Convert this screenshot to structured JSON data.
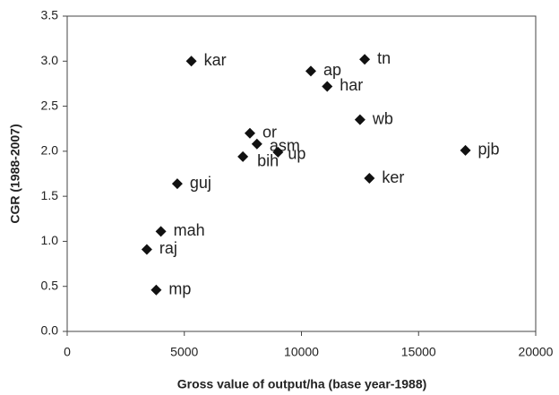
{
  "chart_data": {
    "type": "scatter",
    "xlabel": "Gross value of output/ha (base year-1988)",
    "ylabel": "CGR (1988-2007)",
    "point_labels": [
      "kar",
      "tn",
      "ap",
      "har",
      "wb",
      "or",
      "asm",
      "up",
      "bih",
      "pjb",
      "ker",
      "guj",
      "mah",
      "raj",
      "mp"
    ],
    "x": [
      5300,
      12700,
      10400,
      11100,
      12500,
      7800,
      8100,
      9000,
      7500,
      17000,
      12900,
      4700,
      4000,
      3400,
      3800
    ],
    "values": [
      3.0,
      3.02,
      2.89,
      2.72,
      2.35,
      2.2,
      2.08,
      1.99,
      1.94,
      2.01,
      1.7,
      1.64,
      1.11,
      0.91,
      0.46
    ],
    "color": "#111111",
    "xlim": [
      0,
      20000
    ],
    "xticks": [
      0,
      5000,
      10000,
      15000,
      20000
    ],
    "ylim": [
      0,
      3.5
    ],
    "yticks": [
      {
        "value": 0,
        "label": "0.0"
      },
      {
        "value": 0.5,
        "label": "0.5"
      },
      {
        "value": 1,
        "label": "1.0"
      },
      {
        "value": 1.5,
        "label": "1.5"
      },
      {
        "value": 2,
        "label": "2.0"
      },
      {
        "value": 2.5,
        "label": "2.5"
      },
      {
        "value": 3,
        "label": "3.0"
      },
      {
        "value": 3.5,
        "label": "3.5"
      }
    ]
  }
}
